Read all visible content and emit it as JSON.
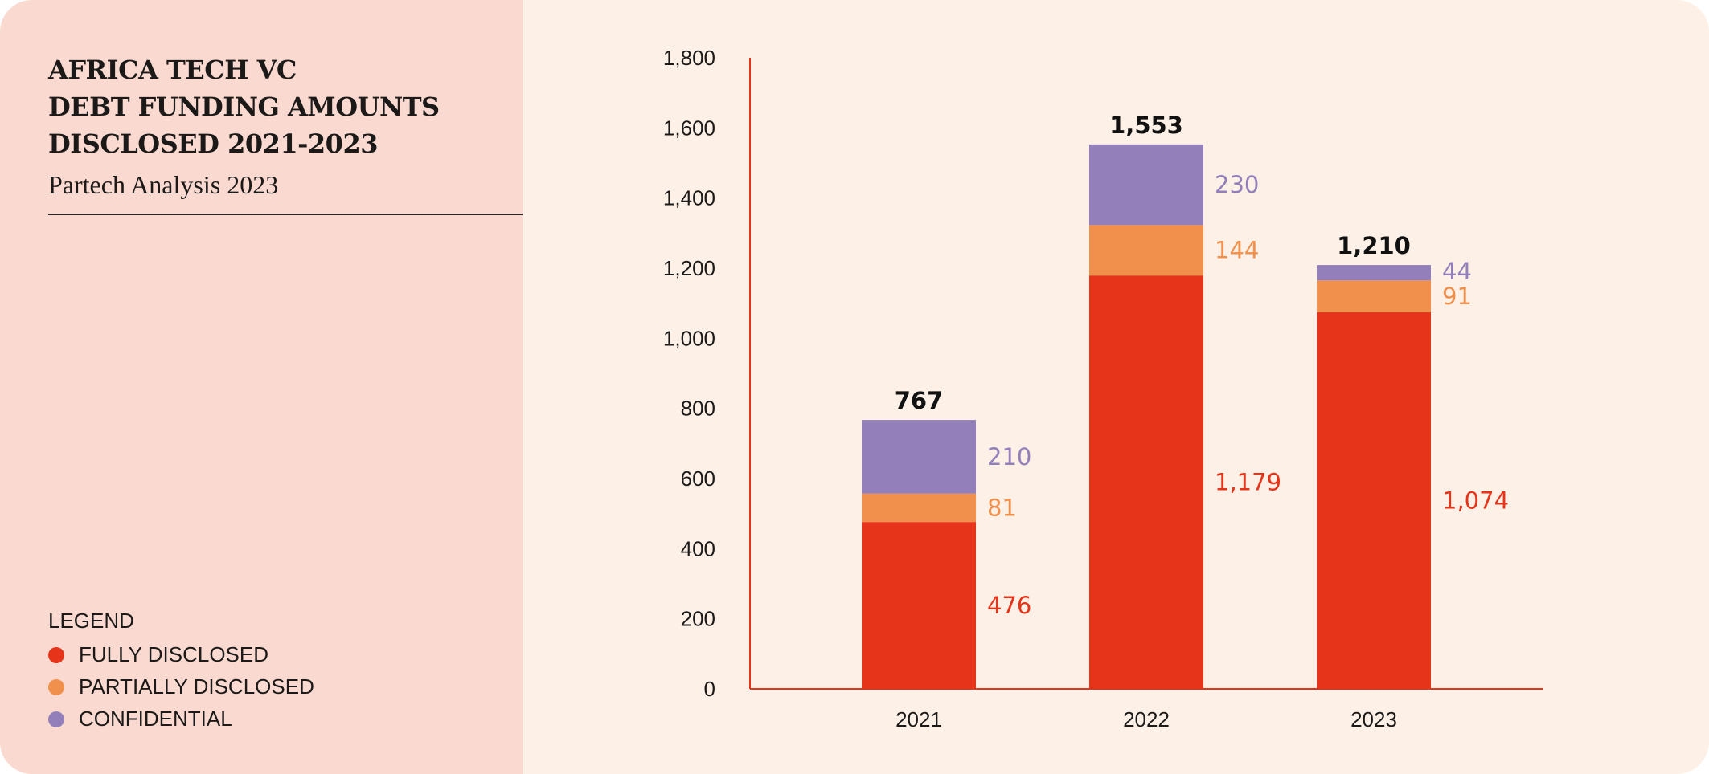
{
  "title_lines": [
    "AFRICA TECH VC",
    "DEBT FUNDING AMOUNTS",
    "DISCLOSED 2021-2023"
  ],
  "subtitle": "Partech Analysis 2023",
  "legend": {
    "title": "LEGEND",
    "items": [
      {
        "label": "FULLY DISCLOSED",
        "color": "#E5341A"
      },
      {
        "label": "PARTIALLY DISCLOSED",
        "color": "#F0904C"
      },
      {
        "label": "CONFIDENTIAL",
        "color": "#9380BA"
      }
    ]
  },
  "chart_data": {
    "type": "bar",
    "stacked": true,
    "categories": [
      "2021",
      "2022",
      "2023"
    ],
    "series": [
      {
        "name": "FULLY DISCLOSED",
        "color": "#E5341A",
        "values": [
          476,
          1179,
          1074
        ],
        "labels": [
          "476",
          "1,179",
          "1,074"
        ]
      },
      {
        "name": "PARTIALLY DISCLOSED",
        "color": "#F0904C",
        "values": [
          81,
          144,
          91
        ],
        "labels": [
          "81",
          "144",
          "91"
        ]
      },
      {
        "name": "CONFIDENTIAL",
        "color": "#9380BA",
        "values": [
          210,
          230,
          44
        ],
        "labels": [
          "210",
          "230",
          "44"
        ]
      }
    ],
    "totals": [
      "767",
      "1,553",
      "1,210"
    ],
    "ylim": [
      0,
      1800
    ],
    "yticks": [
      "0",
      "200",
      "400",
      "600",
      "800",
      "1,000",
      "1,200",
      "1,400",
      "1,600",
      "1,800"
    ],
    "grid": false,
    "legend_position": "left",
    "axis_color": "#E5341A"
  }
}
